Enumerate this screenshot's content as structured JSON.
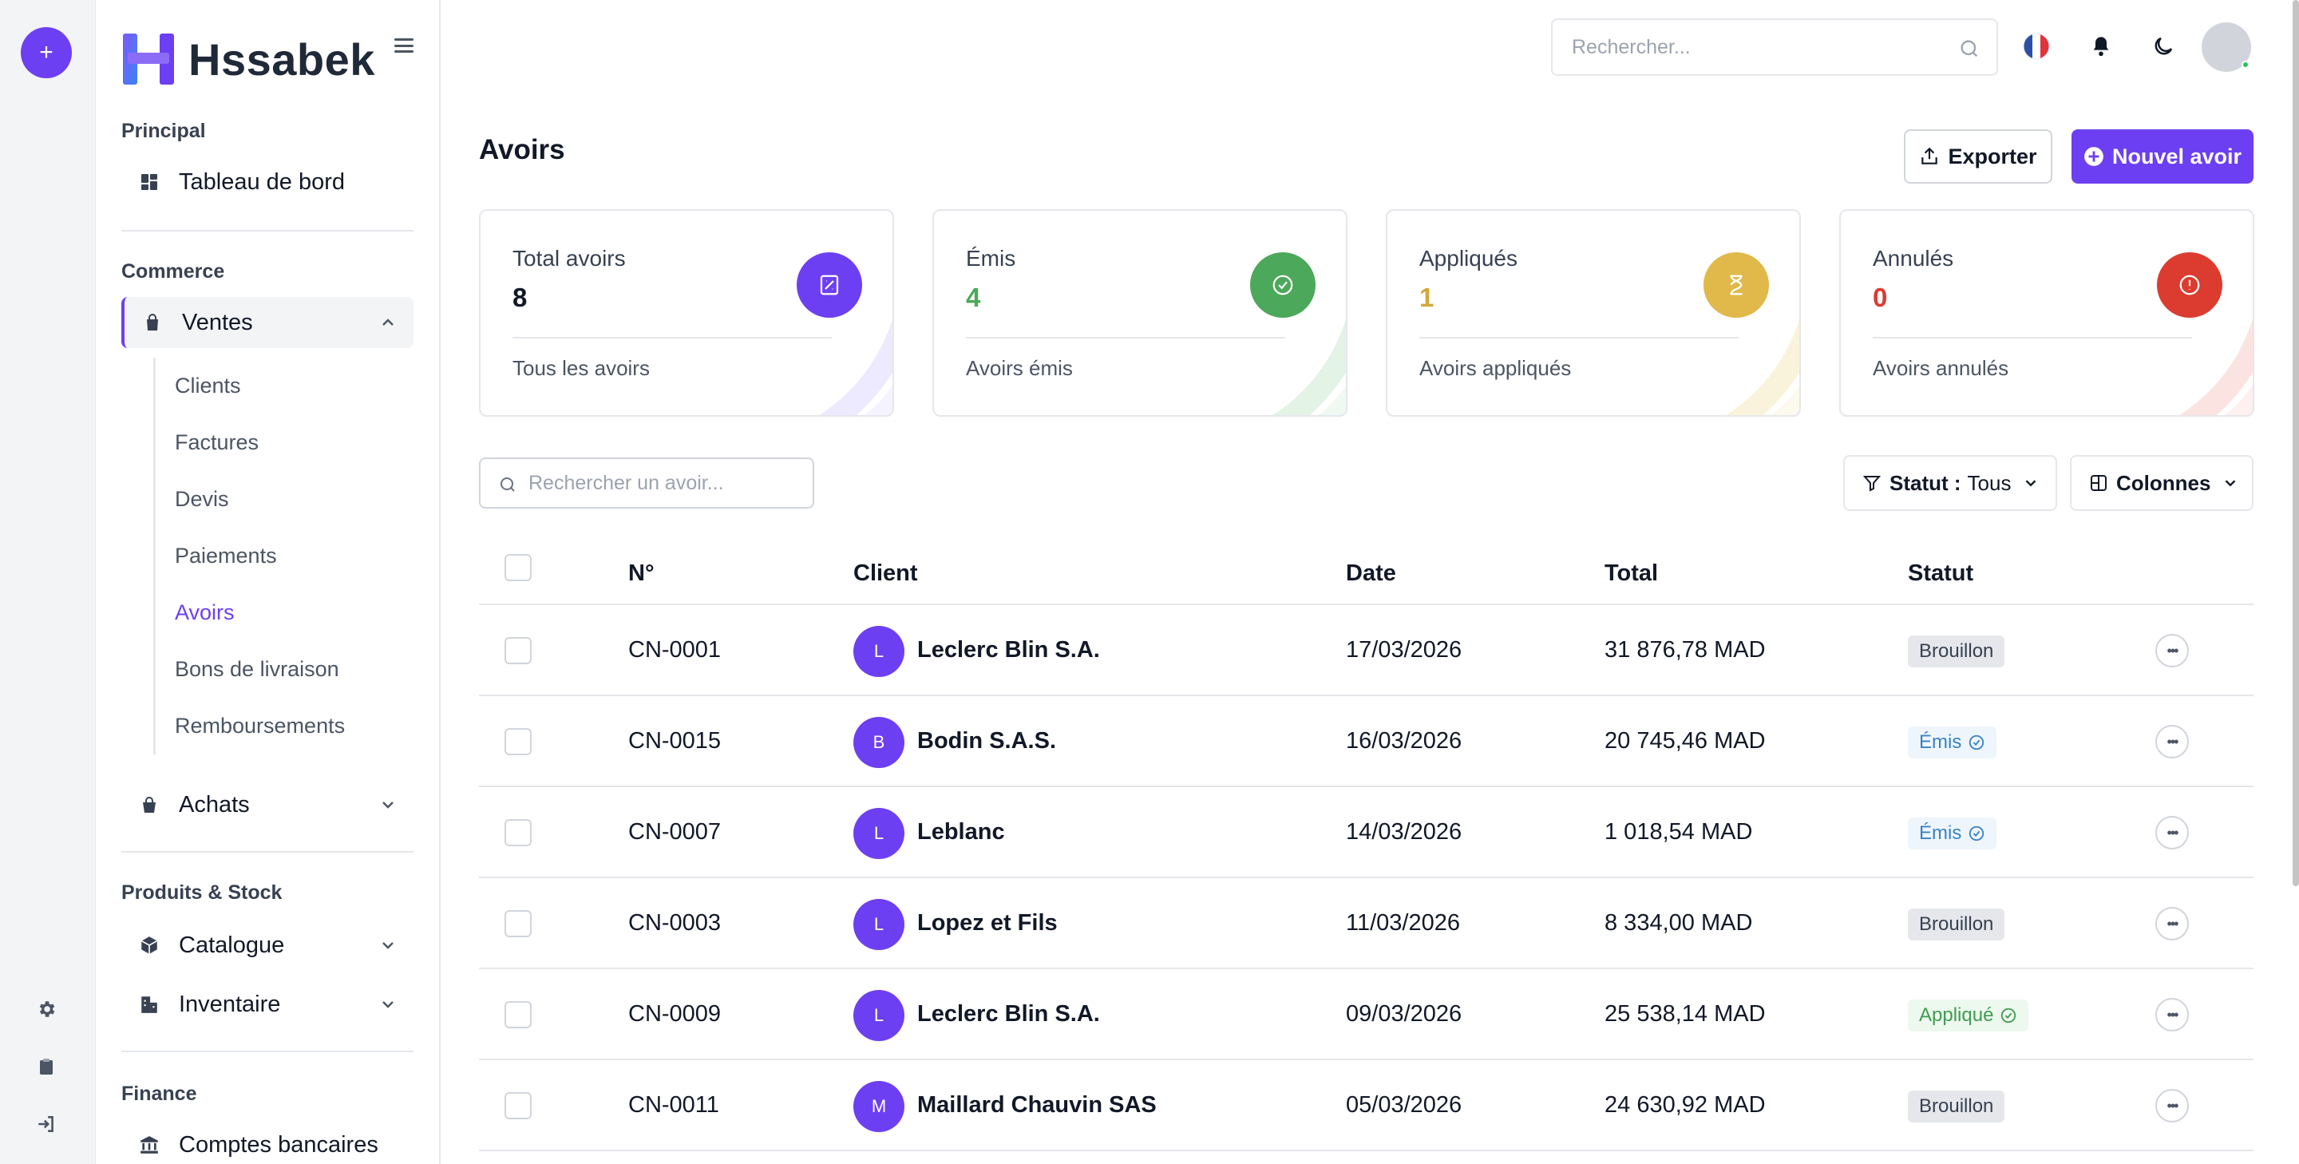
{
  "brand": {
    "name": "Hssabek"
  },
  "rail": {
    "icons": [
      "plus-icon",
      "gear-icon",
      "clipboard-icon",
      "logout-icon"
    ]
  },
  "sidebar": {
    "sections": [
      {
        "title": "Principal"
      },
      {
        "title": "Commerce"
      },
      {
        "title": "Produits & Stock"
      },
      {
        "title": "Finance"
      }
    ],
    "items": {
      "dashboard": "Tableau de bord",
      "ventes": "Ventes",
      "achats": "Achats",
      "catalogue": "Catalogue",
      "inventaire": "Inventaire",
      "comptes": "Comptes bancaires"
    },
    "ventes_sub": [
      "Clients",
      "Factures",
      "Devis",
      "Paiements",
      "Avoirs",
      "Bons de livraison",
      "Remboursements"
    ],
    "current_sub": "Avoirs"
  },
  "topbar": {
    "search_placeholder": "Rechercher...",
    "language": "FR",
    "icons": [
      "flag-fr-icon",
      "bell-icon",
      "moon-icon",
      "avatar"
    ]
  },
  "page": {
    "title": "Avoirs",
    "export_label": "Exporter",
    "new_label": "Nouvel avoir"
  },
  "stats": [
    {
      "label": "Total avoirs",
      "value": "8",
      "sub": "Tous les avoirs",
      "color": "#6d3ff2",
      "value_color": "#111827",
      "icon": "receipt-icon"
    },
    {
      "label": "Émis",
      "value": "4",
      "sub": "Avoirs émis",
      "color": "#4ca85a",
      "value_color": "#4ca85a",
      "icon": "check-circle-icon"
    },
    {
      "label": "Appliqués",
      "value": "1",
      "sub": "Avoirs appliqués",
      "color": "#e0b94a",
      "value_color": "#d4a73a",
      "icon": "hourglass-icon"
    },
    {
      "label": "Annulés",
      "value": "0",
      "sub": "Avoirs annulés",
      "color": "#dc3b2f",
      "value_color": "#dc3b2f",
      "icon": "alert-circle-icon"
    }
  ],
  "toolbar": {
    "search_placeholder": "Rechercher un avoir...",
    "filter_label": "Statut :",
    "filter_value": "Tous",
    "columns_label": "Colonnes"
  },
  "table": {
    "headers": {
      "number": "N°",
      "client": "Client",
      "date": "Date",
      "total": "Total",
      "status": "Statut"
    },
    "rows": [
      {
        "number": "CN-0001",
        "initial": "L",
        "client": "Leclerc Blin S.A.",
        "date": "17/03/2026",
        "total": "31 876,78 MAD",
        "status": "Brouillon",
        "kind": "draft"
      },
      {
        "number": "CN-0015",
        "initial": "B",
        "client": "Bodin S.A.S.",
        "date": "16/03/2026",
        "total": "20 745,46 MAD",
        "status": "Émis",
        "kind": "issued"
      },
      {
        "number": "CN-0007",
        "initial": "L",
        "client": "Leblanc",
        "date": "14/03/2026",
        "total": "1 018,54 MAD",
        "status": "Émis",
        "kind": "issued"
      },
      {
        "number": "CN-0003",
        "initial": "L",
        "client": "Lopez et Fils",
        "date": "11/03/2026",
        "total": "8 334,00 MAD",
        "status": "Brouillon",
        "kind": "draft"
      },
      {
        "number": "CN-0009",
        "initial": "L",
        "client": "Leclerc Blin S.A.",
        "date": "09/03/2026",
        "total": "25 538,14 MAD",
        "status": "Appliqué",
        "kind": "applied"
      },
      {
        "number": "CN-0011",
        "initial": "M",
        "client": "Maillard Chauvin SAS",
        "date": "05/03/2026",
        "total": "24 630,92 MAD",
        "status": "Brouillon",
        "kind": "draft"
      }
    ]
  },
  "colors": {
    "accent": "#6d3ff2",
    "issued": "#3b82c4",
    "applied": "#3f9c4f",
    "draft_bg": "#e5e7eb"
  }
}
